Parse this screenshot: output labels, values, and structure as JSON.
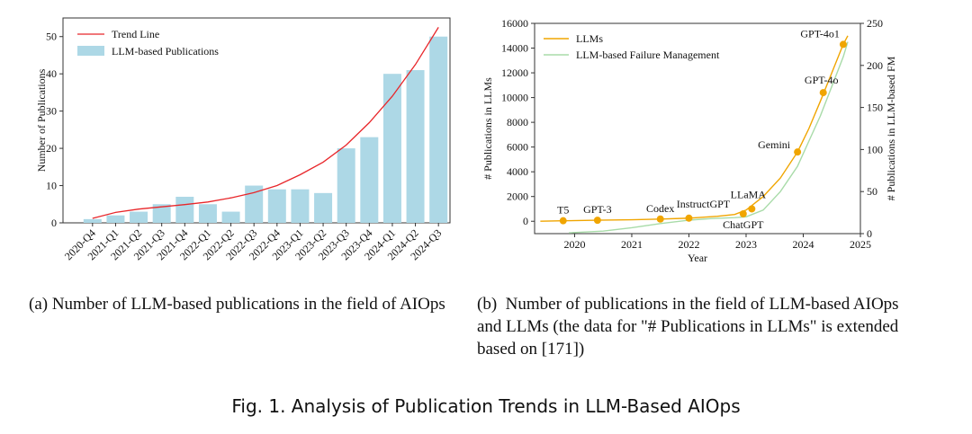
{
  "chart_data": [
    {
      "type": "bar",
      "ylabel": "Number of Publications",
      "xlabel": "",
      "ylim": [
        0,
        55
      ],
      "yticks": [
        0,
        10,
        20,
        30,
        40,
        50
      ],
      "categories": [
        "2020-Q4",
        "2021-Q1",
        "2021-Q2",
        "2021-Q3",
        "2021-Q4",
        "2022-Q1",
        "2022-Q2",
        "2022-Q3",
        "2022-Q4",
        "2023-Q1",
        "2023-Q2",
        "2023-Q3",
        "2023-Q4",
        "2024-Q1",
        "2024-Q2",
        "2024-Q3"
      ],
      "series": [
        {
          "name": "LLM-based Publications",
          "values": [
            1,
            2,
            3,
            5,
            7,
            5,
            3,
            10,
            9,
            9,
            8,
            20,
            23,
            40,
            41,
            50
          ],
          "color": "#add8e6"
        },
        {
          "name": "Trend Line",
          "values": [
            1.2,
            2.8,
            3.7,
            4.3,
            4.9,
            5.6,
            6.7,
            8.1,
            10.0,
            12.9,
            16.3,
            20.9,
            26.9,
            34.0,
            42.5,
            52.5
          ],
          "color": "#e8262a"
        }
      ],
      "legend": "top-left",
      "grid": false
    },
    {
      "type": "line",
      "xlabel": "Year",
      "ylabel": "# Publications in LLMs",
      "y2label": "# Publications in LLM-based FM",
      "xlim": [
        2019.3,
        2025
      ],
      "xticks": [
        2020,
        2021,
        2022,
        2023,
        2024,
        2025
      ],
      "ylim": [
        -1000,
        16000
      ],
      "yticks": [
        0,
        2000,
        4000,
        6000,
        8000,
        10000,
        12000,
        14000,
        16000
      ],
      "y2lim": [
        0,
        250
      ],
      "y2ticks": [
        0,
        50,
        100,
        150,
        200,
        250
      ],
      "legend": "top-left",
      "grid": false,
      "series": [
        {
          "name": "LLMs",
          "axis": "left",
          "color": "#f0a500",
          "x": [
            2019.4,
            2019.8,
            2020.4,
            2021.0,
            2021.5,
            2022.0,
            2022.5,
            2022.8,
            2023.0,
            2023.3,
            2023.6,
            2023.9,
            2024.1,
            2024.3,
            2024.5,
            2024.7,
            2024.78
          ],
          "y": [
            0,
            40,
            80,
            120,
            180,
            250,
            400,
            550,
            900,
            2000,
            3500,
            5600,
            7500,
            9700,
            12000,
            14300,
            15000
          ]
        },
        {
          "name": "LLM-based Failure Management",
          "axis": "right",
          "color": "#a8dba8",
          "x": [
            2019.9,
            2020.5,
            2021.0,
            2021.5,
            2022.0,
            2022.4,
            2022.8,
            2023.0,
            2023.3,
            2023.6,
            2023.9,
            2024.1,
            2024.3,
            2024.5,
            2024.7,
            2024.78
          ],
          "y": [
            1,
            3,
            7,
            12,
            16,
            18,
            19,
            20,
            28,
            50,
            80,
            110,
            140,
            175,
            210,
            228
          ]
        }
      ],
      "annotations": [
        {
          "label": "T5",
          "x": 2019.8,
          "y": 40
        },
        {
          "label": "GPT-3",
          "x": 2020.4,
          "y": 80
        },
        {
          "label": "Codex",
          "x": 2021.5,
          "y": 180
        },
        {
          "label": "InstructGPT",
          "x": 2022.0,
          "y": 250
        },
        {
          "label": "LLaMA",
          "x": 2023.1,
          "y": 1000
        },
        {
          "label": "ChatGPT",
          "x": 2022.95,
          "y": 600
        },
        {
          "label": "Gemini",
          "x": 2023.9,
          "y": 5600
        },
        {
          "label": "GPT-4o",
          "x": 2024.35,
          "y": 10400
        },
        {
          "label": "GPT-4o1",
          "x": 2024.7,
          "y": 14300
        }
      ]
    }
  ],
  "captions": {
    "a": "(a)  Number of LLM-based publications in the field of AIOps",
    "b_label": "(b)",
    "b_lines": [
      "Number of publications in the field of LLM-based AIOps",
      "and LLMs (the data for \"# Publications in LLMs\" is extended",
      "based on [171])"
    ],
    "figure": "Fig. 1.  Analysis of Publication Trends in LLM-Based AIOps"
  }
}
